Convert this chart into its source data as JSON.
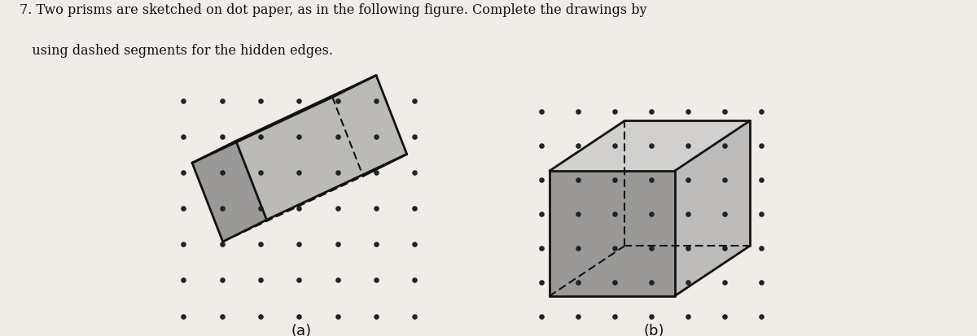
{
  "title_line1": "7. Two prisms are sketched on dot paper, as in the following figure. Complete the drawings by",
  "title_line2": "   using dashed segments for the hidden edges.",
  "label_a": "(a)",
  "label_b": "(b)",
  "bg_color": "#f0ede8",
  "solid_color": "#111111",
  "fill_dark": "#555555",
  "fill_mid": "#888888",
  "fill_light": "#aaaaaa",
  "dot_color": "#222222"
}
